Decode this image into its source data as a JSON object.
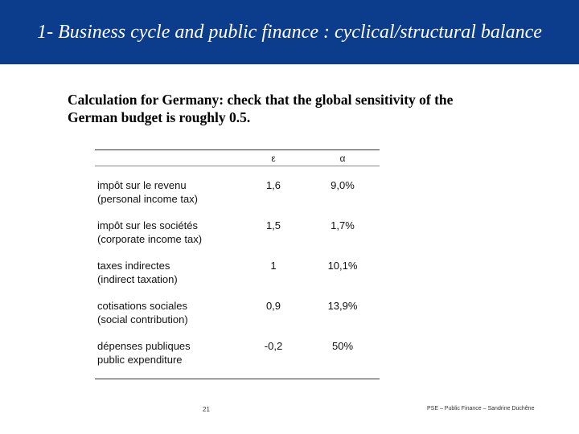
{
  "header": {
    "title": "1- Business cycle and public finance : cyclical/structural balance",
    "background": "#0b3d8c"
  },
  "intro": {
    "line1": "Calculation for Germany: check that the global sensitivity of the",
    "line2": "German budget is roughly 0.5."
  },
  "table": {
    "columns": [
      "ε",
      "α"
    ],
    "rows": [
      {
        "label1": "impôt sur le revenu",
        "label2": "(personal income tax)",
        "eps": "1,6",
        "alpha": "9,0%"
      },
      {
        "label1": "impôt sur les sociétés",
        "label2": "(corporate income tax)",
        "eps": "1,5",
        "alpha": "1,7%"
      },
      {
        "label1": "taxes indirectes",
        "label2": "(indirect taxation)",
        "eps": "1",
        "alpha": "10,1%"
      },
      {
        "label1": "cotisations sociales",
        "label2": "(social contribution)",
        "eps": "0,9",
        "alpha": "13,9%"
      },
      {
        "label1": "dépenses publiques",
        "label2": "public expenditure",
        "eps": "-0,2",
        "alpha": "50%"
      }
    ]
  },
  "footer": {
    "page_number": "21",
    "text": "PSE – Public Finance – Sandrine Duchêne"
  }
}
